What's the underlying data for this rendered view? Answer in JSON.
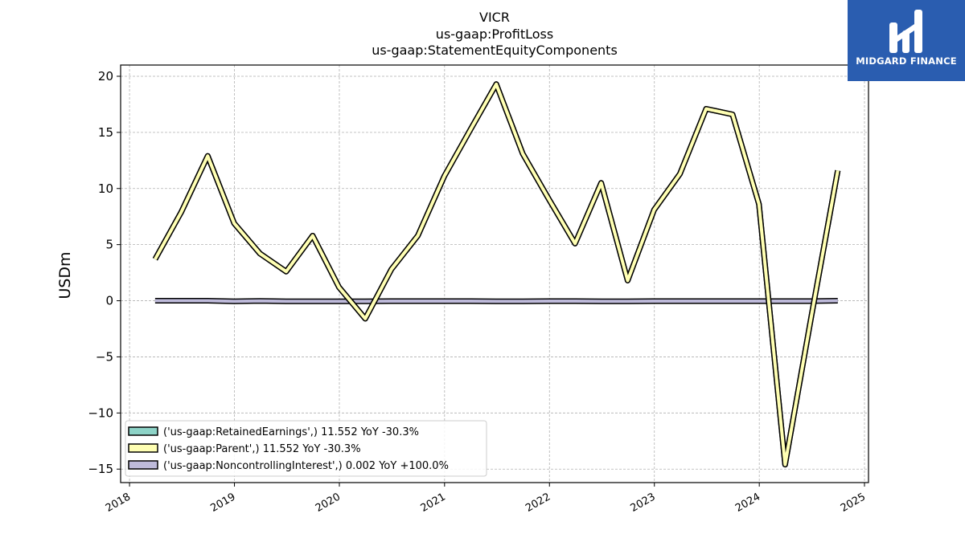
{
  "chart_data": {
    "type": "line",
    "title": [
      "VICR",
      "us-gaap:ProfitLoss",
      "us-gaap:StatementEquityComponents"
    ],
    "xlabel": "",
    "ylabel": "USDm",
    "xlim": [
      "2017-12-01",
      "2025-01-15"
    ],
    "ylim": [
      -16.2,
      21
    ],
    "xticks": [
      "2018",
      "2019",
      "2020",
      "2021",
      "2022",
      "2023",
      "2024",
      "2025"
    ],
    "yticks": [
      20,
      15,
      10,
      5,
      0,
      -5,
      -10,
      -15
    ],
    "ytick_labels": [
      "20",
      "15",
      "10",
      "5",
      "0",
      "−5",
      "−10",
      "−15"
    ],
    "grid": true,
    "legend_position": "lower-left",
    "series": [
      {
        "name": "('us-gaap:RetainedEarnings',) 11.552 YoY -30.3%",
        "color": "#8dd3c7",
        "x": [
          "2018-03-31",
          "2018-06-30",
          "2018-09-30",
          "2018-12-31",
          "2019-03-31",
          "2019-06-30",
          "2019-09-30",
          "2019-12-31",
          "2020-03-31",
          "2020-06-30",
          "2020-09-30",
          "2020-12-31",
          "2021-03-31",
          "2021-06-30",
          "2021-09-30",
          "2021-12-31",
          "2022-03-31",
          "2022-06-30",
          "2022-09-30",
          "2022-12-31",
          "2023-03-31",
          "2023-06-30",
          "2023-09-30",
          "2023-12-31",
          "2024-03-31",
          "2024-06-30",
          "2024-09-30"
        ],
        "values": [
          3.7,
          7.9,
          12.9,
          6.9,
          4.2,
          2.6,
          5.8,
          1.2,
          -1.6,
          2.8,
          5.8,
          11.1,
          15.2,
          19.3,
          13.1,
          9.0,
          5.1,
          10.5,
          1.8,
          8.1,
          11.3,
          17.1,
          16.6,
          8.6,
          -14.6,
          -1.4,
          11.6
        ]
      },
      {
        "name": "('us-gaap:Parent',) 11.552 YoY -30.3%",
        "color": "#ffffb3",
        "x": [
          "2018-03-31",
          "2018-06-30",
          "2018-09-30",
          "2018-12-31",
          "2019-03-31",
          "2019-06-30",
          "2019-09-30",
          "2019-12-31",
          "2020-03-31",
          "2020-06-30",
          "2020-09-30",
          "2020-12-31",
          "2021-03-31",
          "2021-06-30",
          "2021-09-30",
          "2021-12-31",
          "2022-03-31",
          "2022-06-30",
          "2022-09-30",
          "2022-12-31",
          "2023-03-31",
          "2023-06-30",
          "2023-09-30",
          "2023-12-31",
          "2024-03-31",
          "2024-06-30",
          "2024-09-30"
        ],
        "values": [
          3.7,
          7.9,
          12.9,
          6.9,
          4.2,
          2.6,
          5.8,
          1.2,
          -1.6,
          2.8,
          5.8,
          11.1,
          15.2,
          19.3,
          13.1,
          9.0,
          5.1,
          10.5,
          1.8,
          8.1,
          11.3,
          17.1,
          16.6,
          8.6,
          -14.6,
          -1.4,
          11.6
        ]
      },
      {
        "name": "('us-gaap:NoncontrollingInterest',) 0.002 YoY +100.0%",
        "color": "#bebada",
        "x": [
          "2018-03-31",
          "2018-06-30",
          "2018-09-30",
          "2018-12-31",
          "2019-03-31",
          "2019-06-30",
          "2019-09-30",
          "2019-12-31",
          "2020-03-31",
          "2020-06-30",
          "2020-09-30",
          "2020-12-31",
          "2021-03-31",
          "2021-06-30",
          "2021-09-30",
          "2021-12-31",
          "2022-03-31",
          "2022-06-30",
          "2022-09-30",
          "2022-12-31",
          "2023-03-31",
          "2023-06-30",
          "2023-09-30",
          "2023-12-31",
          "2024-03-31",
          "2024-06-30",
          "2024-09-30"
        ],
        "values": [
          0.0,
          0.0,
          0.0,
          -0.05,
          -0.02,
          -0.05,
          -0.05,
          -0.05,
          -0.05,
          -0.03,
          -0.03,
          -0.03,
          -0.03,
          -0.05,
          -0.05,
          -0.03,
          -0.03,
          -0.05,
          -0.05,
          -0.03,
          -0.03,
          -0.03,
          -0.03,
          -0.03,
          -0.03,
          -0.03,
          0.002
        ]
      }
    ]
  },
  "logo": {
    "text": "MIDGARD FINANCE",
    "background": "#2a5db0"
  }
}
